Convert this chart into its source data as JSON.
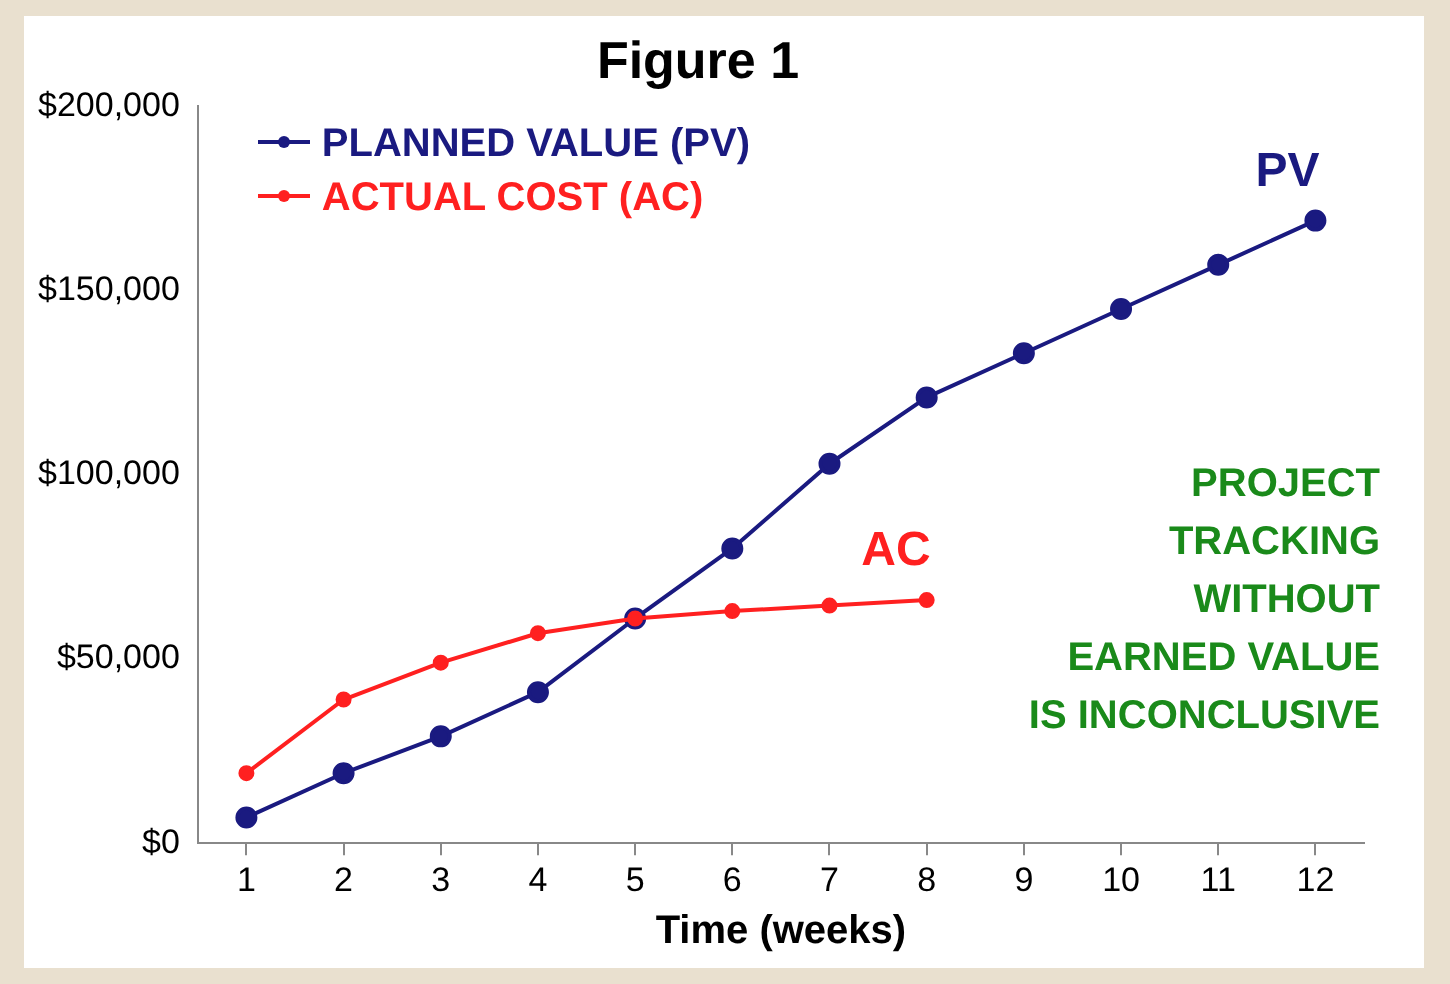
{
  "chart_data": {
    "type": "line",
    "title": "Figure 1",
    "xlabel": "Time (weeks)",
    "x": [
      1,
      2,
      3,
      4,
      5,
      6,
      7,
      8,
      9,
      10,
      11,
      12
    ],
    "xlim": [
      0.5,
      12.5
    ],
    "xticks": [
      1,
      2,
      3,
      4,
      5,
      6,
      7,
      8,
      9,
      10,
      11,
      12
    ],
    "series": [
      {
        "name": "PLANNED VALUE (PV)",
        "color": "#1a1a80",
        "values": [
          7000,
          19000,
          29000,
          41000,
          61000,
          80000,
          103000,
          121000,
          133000,
          145000,
          157000,
          169000
        ]
      },
      {
        "name": "ACTUAL COST (AC)",
        "color": "#ff2020",
        "values": [
          19000,
          39000,
          49000,
          57000,
          61000,
          63000,
          64500,
          66000,
          null,
          null,
          null,
          null
        ]
      }
    ],
    "ylim": [
      0,
      200000
    ],
    "yticks": [
      {
        "value": 0,
        "label": "$0"
      },
      {
        "value": 50000,
        "label": "$50,000"
      },
      {
        "value": 100000,
        "label": "$100,000"
      },
      {
        "value": 150000,
        "label": "$150,000"
      },
      {
        "value": 200000,
        "label": "$200,000"
      }
    ],
    "annotations": [
      "PV",
      "AC",
      "PROJECT\nTRACKING\nWITHOUT\nEARNED VALUE\nIS INCONCLUSIVE"
    ],
    "legend": "top left",
    "marker": "circle",
    "line_style": "solid",
    "grid": false
  }
}
